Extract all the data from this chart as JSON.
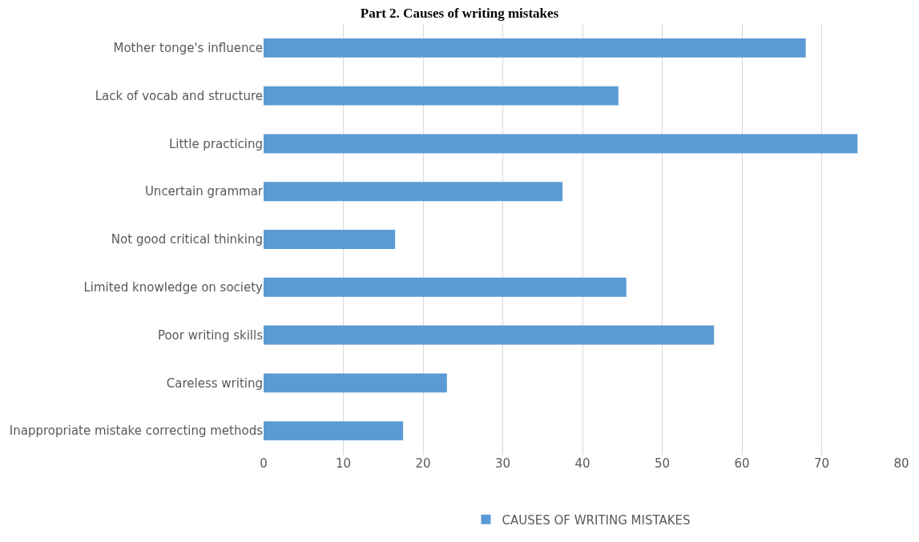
{
  "chart_data": {
    "type": "bar",
    "orientation": "horizontal",
    "title": "Part 2. Causes of writing mistakes",
    "categories": [
      "Mother tonge's influence",
      "Lack of vocab and structure",
      "Little practicing",
      "Uncertain grammar",
      "Not good critical thinking",
      "Limited knowledge on society",
      "Poor writing skills",
      "Careless writing",
      "Inappropriate mistake correcting methods"
    ],
    "series": [
      {
        "name": "CAUSES OF WRITING MISTAKES",
        "color": "#5b9bd5",
        "values": [
          68,
          44.5,
          74.5,
          37.5,
          16.5,
          45.5,
          56.5,
          23,
          17.5
        ]
      }
    ],
    "xlim": [
      0,
      80
    ],
    "xticks": [
      0,
      10,
      20,
      30,
      40,
      50,
      60,
      70,
      80
    ],
    "grid": "x",
    "legend": "bottom"
  }
}
